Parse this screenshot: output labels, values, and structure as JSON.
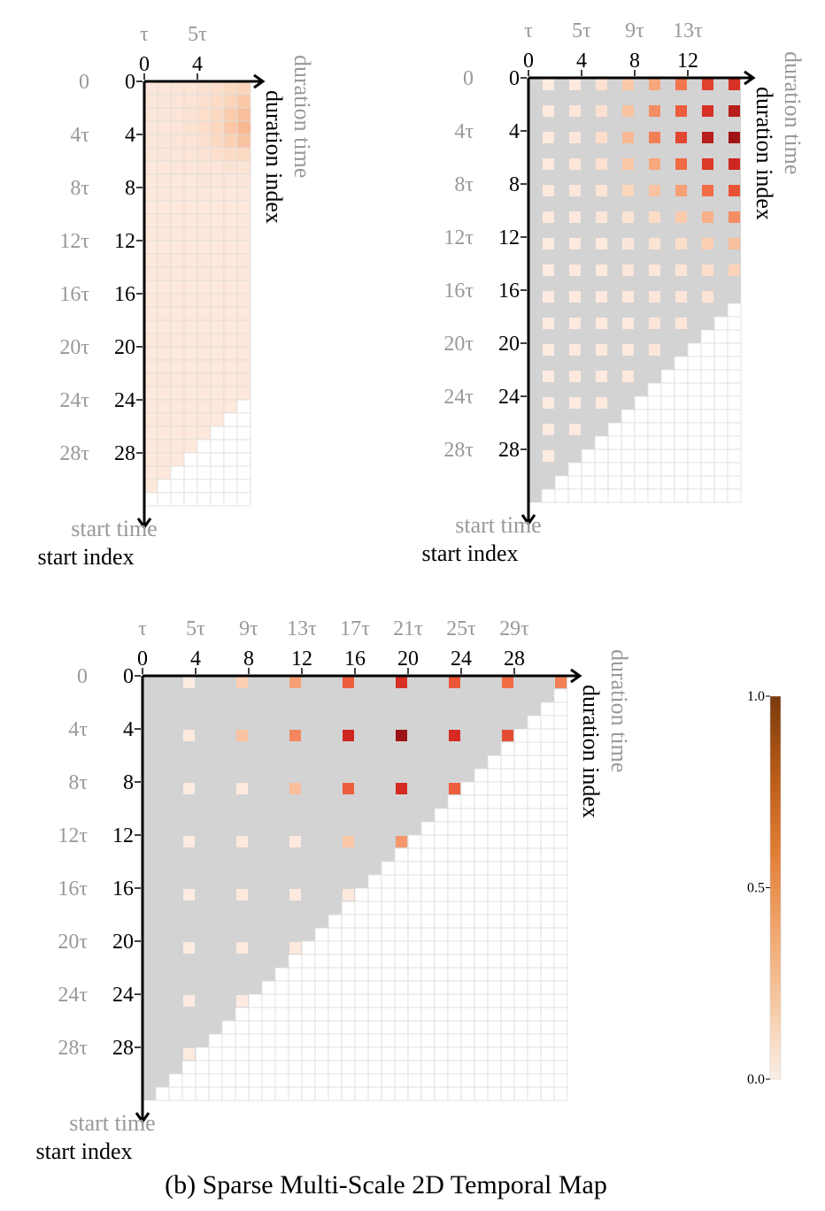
{
  "caption": "(b) Sparse Multi-Scale 2D Temporal Map",
  "colors": {
    "masked": "#d3d3d3",
    "grid_line": "#dddddd",
    "empty": "#ffffff",
    "label_gray": "#999999",
    "colorscale": [
      "#fdeee6",
      "#fbd4b9",
      "#f7a77c",
      "#f0643f",
      "#d42a22",
      "#8f0d12"
    ],
    "colorbar": [
      "#fbeee6",
      "#f6c8a2",
      "#f0a46c",
      "#e07c34",
      "#b65a17",
      "#7a3b0d"
    ]
  },
  "panels": [
    {
      "id": "panel-small",
      "col_ticks": [
        "0",
        "4"
      ],
      "col_time_ticks": [
        "τ",
        "5τ"
      ],
      "row_ticks": [
        "0",
        "4",
        "8",
        "12",
        "16",
        "20",
        "24",
        "28"
      ],
      "row_time_ticks": [
        "0",
        "4τ",
        "8τ",
        "12τ",
        "16τ",
        "20τ",
        "24τ",
        "28τ"
      ],
      "x_label_index": "duration index",
      "x_label_time": "duration time",
      "y_label_index": "start index",
      "y_label_time": "start time"
    },
    {
      "id": "panel-medium",
      "col_ticks": [
        "0",
        "4",
        "8",
        "12"
      ],
      "col_time_ticks": [
        "τ",
        "5τ",
        "9τ",
        "13τ"
      ],
      "row_ticks": [
        "0",
        "4",
        "8",
        "12",
        "16",
        "20",
        "24",
        "28"
      ],
      "row_time_ticks": [
        "0",
        "4τ",
        "8τ",
        "12τ",
        "16τ",
        "20τ",
        "24τ",
        "28τ"
      ],
      "x_label_index": "duration index",
      "x_label_time": "duration time",
      "y_label_index": "start index",
      "y_label_time": "start time"
    },
    {
      "id": "panel-large",
      "col_ticks": [
        "0",
        "4",
        "8",
        "12",
        "16",
        "20",
        "24",
        "28"
      ],
      "col_time_ticks": [
        "τ",
        "5τ",
        "9τ",
        "13τ",
        "17τ",
        "21τ",
        "25τ",
        "29τ"
      ],
      "row_ticks": [
        "0",
        "4",
        "8",
        "12",
        "16",
        "20",
        "24",
        "28"
      ],
      "row_time_ticks": [
        "0",
        "4τ",
        "8τ",
        "12τ",
        "16τ",
        "20τ",
        "24τ",
        "28τ"
      ],
      "x_label_index": "duration index",
      "x_label_time": "duration time",
      "y_label_index": "start index",
      "y_label_time": "start time"
    }
  ],
  "colorbar": {
    "min": 0.0,
    "max": 1.0,
    "ticks": [
      "0.0",
      "0.5",
      "1.0"
    ]
  },
  "chart_data": [
    {
      "type": "heatmap",
      "rows": 32,
      "cols": 8,
      "range": [
        0,
        1
      ],
      "values": [
        [
          0.06,
          0.06,
          0.07,
          0.08,
          0.1,
          0.12,
          0.16,
          0.2
        ],
        [
          0.06,
          0.06,
          0.07,
          0.08,
          0.11,
          0.14,
          0.2,
          0.26
        ],
        [
          0.06,
          0.06,
          0.07,
          0.09,
          0.12,
          0.16,
          0.24,
          0.3
        ],
        [
          0.06,
          0.06,
          0.07,
          0.09,
          0.12,
          0.18,
          0.26,
          0.33
        ],
        [
          0.06,
          0.06,
          0.07,
          0.08,
          0.11,
          0.16,
          0.22,
          0.28
        ],
        [
          0.06,
          0.06,
          0.06,
          0.07,
          0.09,
          0.11,
          0.14,
          0.16
        ],
        [
          0.05,
          0.05,
          0.06,
          0.06,
          0.07,
          0.07,
          0.08,
          0.08
        ],
        [
          0.05,
          0.05,
          0.05,
          0.05,
          0.06,
          0.06,
          0.06,
          0.06
        ],
        [
          0.05,
          0.05,
          0.05,
          0.05,
          0.05,
          0.05,
          0.05,
          0.05
        ],
        [
          0.05,
          0.05,
          0.05,
          0.05,
          0.05,
          0.05,
          0.05,
          0.05
        ],
        [
          0.05,
          0.05,
          0.05,
          0.05,
          0.05,
          0.05,
          0.05,
          0.05
        ],
        [
          0.05,
          0.05,
          0.05,
          0.05,
          0.05,
          0.05,
          0.05,
          0.05
        ],
        [
          0.05,
          0.05,
          0.05,
          0.05,
          0.05,
          0.05,
          0.05,
          0.05
        ],
        [
          0.05,
          0.05,
          0.05,
          0.05,
          0.05,
          0.05,
          0.05,
          0.05
        ],
        [
          0.05,
          0.05,
          0.05,
          0.05,
          0.05,
          0.05,
          0.05,
          0.05
        ],
        [
          0.05,
          0.05,
          0.05,
          0.05,
          0.05,
          0.05,
          0.05,
          0.05
        ],
        [
          0.05,
          0.05,
          0.05,
          0.05,
          0.05,
          0.05,
          0.05,
          0.05
        ],
        [
          0.05,
          0.05,
          0.05,
          0.05,
          0.05,
          0.05,
          0.05,
          0.05
        ],
        [
          0.05,
          0.05,
          0.05,
          0.05,
          0.05,
          0.05,
          0.05,
          0.05
        ],
        [
          0.05,
          0.05,
          0.05,
          0.05,
          0.05,
          0.05,
          0.05,
          0.05
        ],
        [
          0.05,
          0.05,
          0.05,
          0.05,
          0.05,
          0.05,
          0.05,
          0.05
        ],
        [
          0.05,
          0.05,
          0.05,
          0.05,
          0.05,
          0.05,
          0.05,
          0.05
        ],
        [
          0.05,
          0.05,
          0.05,
          0.05,
          0.05,
          0.05,
          0.05,
          0.05
        ],
        [
          0.05,
          0.05,
          0.05,
          0.05,
          0.05,
          0.05,
          0.05,
          0.05
        ],
        [
          0.05,
          0.05,
          0.05,
          0.05,
          0.05,
          0.05,
          0.05,
          null
        ],
        [
          0.05,
          0.05,
          0.05,
          0.05,
          0.05,
          0.05,
          null,
          null
        ],
        [
          0.05,
          0.05,
          0.05,
          0.05,
          0.05,
          null,
          null,
          null
        ],
        [
          0.05,
          0.05,
          0.05,
          0.05,
          null,
          null,
          null,
          null
        ],
        [
          0.05,
          0.05,
          0.05,
          null,
          null,
          null,
          null,
          null
        ],
        [
          0.05,
          0.05,
          null,
          null,
          null,
          null,
          null,
          null
        ],
        [
          0.05,
          null,
          null,
          null,
          null,
          null,
          null,
          null
        ],
        [
          null,
          null,
          null,
          null,
          null,
          null,
          null,
          null
        ]
      ]
    },
    {
      "type": "heatmap",
      "rows": 32,
      "cols": 16,
      "range": [
        0,
        1
      ],
      "sample_cols": [
        1,
        3,
        5,
        7,
        9,
        11,
        13,
        15
      ],
      "sample_rows": [
        0,
        2,
        4,
        6,
        8,
        10,
        12,
        14,
        16,
        18,
        20,
        22,
        24,
        26,
        28,
        30
      ],
      "sample_values": [
        [
          0.02,
          0.04,
          0.1,
          0.25,
          0.4,
          0.55,
          0.72,
          0.78
        ],
        [
          0.04,
          0.06,
          0.1,
          0.28,
          0.48,
          0.62,
          0.78,
          0.88
        ],
        [
          0.04,
          0.06,
          0.12,
          0.32,
          0.52,
          0.7,
          0.88,
          0.95
        ],
        [
          0.04,
          0.06,
          0.1,
          0.26,
          0.4,
          0.58,
          0.75,
          0.82
        ],
        [
          0.04,
          0.06,
          0.08,
          0.18,
          0.28,
          0.42,
          0.58,
          0.66
        ],
        [
          0.04,
          0.04,
          0.06,
          0.08,
          0.14,
          0.24,
          0.36,
          0.48
        ],
        [
          0.02,
          0.04,
          0.04,
          0.06,
          0.08,
          0.12,
          0.22,
          0.3
        ],
        [
          0.02,
          0.04,
          0.04,
          0.06,
          0.06,
          0.08,
          0.12,
          0.2
        ],
        [
          0.02,
          0.04,
          0.04,
          0.04,
          0.06,
          0.06,
          0.08,
          null
        ],
        [
          0.02,
          0.04,
          0.04,
          0.04,
          0.06,
          0.06,
          null,
          null
        ],
        [
          0.02,
          0.04,
          0.04,
          0.04,
          0.06,
          null,
          null,
          null
        ],
        [
          0.02,
          0.04,
          0.04,
          0.04,
          null,
          null,
          null,
          null
        ],
        [
          0.02,
          0.04,
          0.04,
          null,
          null,
          null,
          null,
          null
        ],
        [
          0.02,
          0.04,
          null,
          null,
          null,
          null,
          null,
          null
        ],
        [
          0.02,
          null,
          null,
          null,
          null,
          null,
          null,
          null
        ],
        [
          null,
          null,
          null,
          null,
          null,
          null,
          null,
          null
        ]
      ]
    },
    {
      "type": "heatmap",
      "rows": 32,
      "cols": 32,
      "range": [
        0,
        1
      ],
      "sample_cols": [
        3,
        7,
        11,
        15,
        19,
        23,
        27,
        31
      ],
      "sample_rows": [
        0,
        4,
        8,
        12,
        16,
        20,
        24,
        28
      ],
      "sample_values": [
        [
          0.02,
          0.22,
          0.42,
          0.62,
          0.78,
          0.65,
          0.58,
          0.52
        ],
        [
          0.04,
          0.28,
          0.5,
          0.82,
          0.96,
          0.8,
          0.68,
          null
        ],
        [
          0.02,
          0.04,
          0.3,
          0.62,
          0.8,
          0.62,
          null,
          null
        ],
        [
          0.02,
          0.04,
          0.04,
          0.26,
          0.45,
          null,
          null,
          null
        ],
        [
          0.02,
          0.04,
          0.04,
          0.04,
          null,
          null,
          null,
          null
        ],
        [
          0.02,
          0.04,
          0.04,
          null,
          null,
          null,
          null,
          null
        ],
        [
          0.02,
          0.02,
          null,
          null,
          null,
          null,
          null,
          null
        ],
        [
          0.03,
          null,
          null,
          null,
          null,
          null,
          null,
          null
        ]
      ]
    }
  ]
}
